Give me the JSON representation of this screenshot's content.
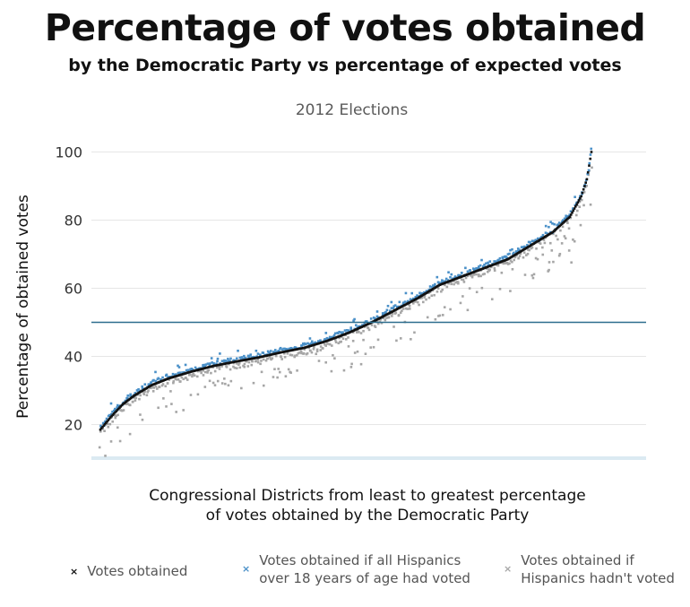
{
  "header": {
    "title": "Percentage of votes obtained",
    "subtitle": "by the Democratic Party vs percentage of expected votes"
  },
  "chart_data": {
    "type": "scatter",
    "title": "2012 Elections",
    "xlabel_lines": [
      "Congressional Districts from least to greatest percentage",
      "of votes obtained by the Democratic Party"
    ],
    "ylabel": "Percentage of obtained votes",
    "ylim": [
      10,
      105
    ],
    "yticks": [
      20,
      40,
      60,
      80,
      100
    ],
    "reference_line": 50,
    "n_points": 435,
    "anchors_obtained": [
      [
        0,
        18.5
      ],
      [
        5,
        20.5
      ],
      [
        10,
        22.5
      ],
      [
        20,
        26
      ],
      [
        30,
        28.5
      ],
      [
        45,
        31.5
      ],
      [
        60,
        33.5
      ],
      [
        80,
        35.5
      ],
      [
        100,
        37.2
      ],
      [
        120,
        38.5
      ],
      [
        140,
        39.7
      ],
      [
        160,
        41.2
      ],
      [
        180,
        42.5
      ],
      [
        200,
        44.5
      ],
      [
        220,
        47
      ],
      [
        240,
        50
      ],
      [
        260,
        53.5
      ],
      [
        280,
        57
      ],
      [
        300,
        61
      ],
      [
        320,
        63.5
      ],
      [
        340,
        66
      ],
      [
        360,
        68.5
      ],
      [
        380,
        72.5
      ],
      [
        400,
        76.5
      ],
      [
        415,
        81
      ],
      [
        425,
        87
      ],
      [
        430,
        92
      ],
      [
        434,
        100
      ]
    ],
    "series": [
      {
        "name": "Votes obtained",
        "color": "#111111",
        "marker": "×"
      },
      {
        "name": "Votes obtained if all Hispanics over 18 years of age had voted",
        "color": "#4a90c8",
        "marker": "×"
      },
      {
        "name": "Votes obtained if Hispanics hadn't voted",
        "color": "#a6a6a6",
        "marker": "×"
      }
    ]
  },
  "legend": [
    {
      "lines": [
        "Votes obtained"
      ],
      "color": "#111111"
    },
    {
      "lines": [
        "Votes obtained if all Hispanics",
        "over 18 years of age had voted"
      ],
      "color": "#4a90c8"
    },
    {
      "lines": [
        "Votes obtained if",
        "Hispanics hadn't voted"
      ],
      "color": "#a6a6a6"
    }
  ]
}
